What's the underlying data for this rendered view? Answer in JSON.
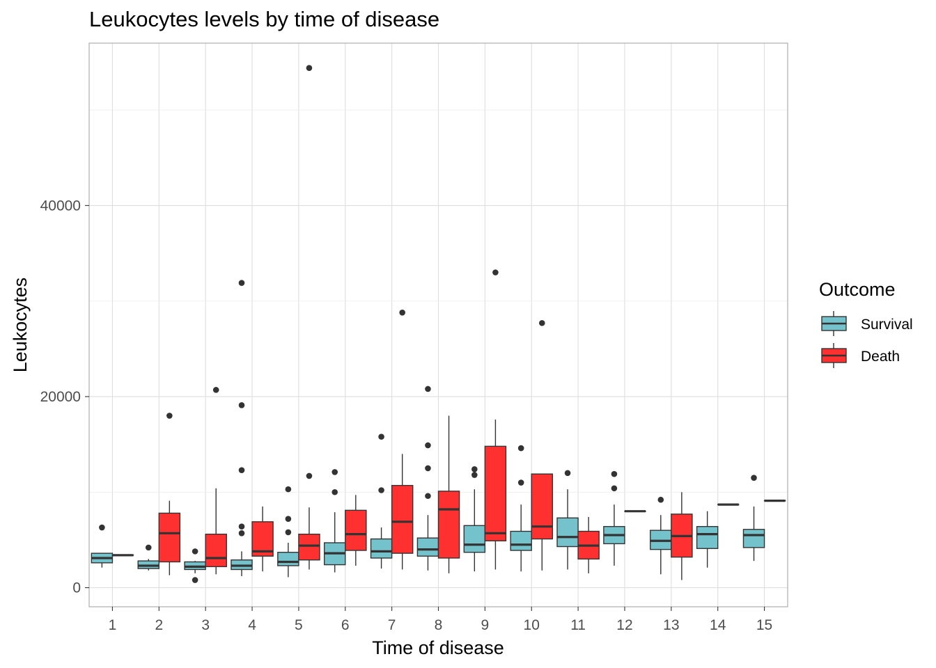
{
  "chart_data": {
    "type": "boxplot",
    "title": "Leukocytes levels by time of disease",
    "xlabel": "Time of disease",
    "ylabel": "Leukocytes",
    "categories": [
      "1",
      "2",
      "3",
      "4",
      "5",
      "6",
      "7",
      "8",
      "9",
      "10",
      "11",
      "12",
      "13",
      "14",
      "15"
    ],
    "y_ticks": [
      0,
      20000,
      40000
    ],
    "y_tick_labels": [
      "0",
      "20000",
      "40000"
    ],
    "ylim": [
      -2000,
      57000
    ],
    "grid": true,
    "legend": {
      "title": "Outcome",
      "position": "right"
    },
    "series": [
      {
        "name": "Survival",
        "color": "#74C2CB",
        "boxes": [
          {
            "x": "1",
            "min": 2100,
            "q1": 2600,
            "median": 3100,
            "q3": 3600,
            "max": 3600,
            "outliers": [
              6300
            ]
          },
          {
            "x": "2",
            "min": 1800,
            "q1": 2000,
            "median": 2300,
            "q3": 2800,
            "max": 3000,
            "outliers": [
              4200
            ]
          },
          {
            "x": "3",
            "min": 1500,
            "q1": 1900,
            "median": 2200,
            "q3": 2700,
            "max": 2800,
            "outliers": [
              3800,
              800
            ]
          },
          {
            "x": "4",
            "min": 1200,
            "q1": 1900,
            "median": 2300,
            "q3": 2900,
            "max": 3800,
            "outliers": [
              6400,
              5700,
              31900,
              19100,
              12300
            ]
          },
          {
            "x": "5",
            "min": 1100,
            "q1": 2300,
            "median": 2700,
            "q3": 3700,
            "max": 4700,
            "outliers": [
              10300,
              7200,
              5800
            ]
          },
          {
            "x": "6",
            "min": 1600,
            "q1": 2400,
            "median": 3600,
            "q3": 4700,
            "max": 7900,
            "outliers": [
              12100,
              10000
            ]
          },
          {
            "x": "7",
            "min": 2000,
            "q1": 3100,
            "median": 3800,
            "q3": 5100,
            "max": 6300,
            "outliers": [
              15800,
              10200
            ]
          },
          {
            "x": "8",
            "min": 1800,
            "q1": 3300,
            "median": 4000,
            "q3": 5200,
            "max": 7600,
            "outliers": [
              20800,
              14900,
              12500,
              9600
            ]
          },
          {
            "x": "9",
            "min": 1700,
            "q1": 3700,
            "median": 4500,
            "q3": 6500,
            "max": 10300,
            "outliers": [
              12400,
              11800
            ]
          },
          {
            "x": "10",
            "min": 1700,
            "q1": 3900,
            "median": 4500,
            "q3": 5900,
            "max": 8700,
            "outliers": [
              14600,
              11000
            ]
          },
          {
            "x": "11",
            "min": 1900,
            "q1": 4300,
            "median": 5300,
            "q3": 7300,
            "max": 10300,
            "outliers": [
              12000
            ]
          },
          {
            "x": "12",
            "min": 2300,
            "q1": 4600,
            "median": 5500,
            "q3": 6400,
            "max": 8700,
            "outliers": [
              11900,
              10400
            ]
          },
          {
            "x": "13",
            "min": 1400,
            "q1": 4000,
            "median": 4900,
            "q3": 6000,
            "max": 7600,
            "outliers": [
              9200
            ]
          },
          {
            "x": "14",
            "min": 2100,
            "q1": 4100,
            "median": 5600,
            "q3": 6400,
            "max": 8000,
            "outliers": []
          },
          {
            "x": "15",
            "min": 2800,
            "q1": 4200,
            "median": 5500,
            "q3": 6100,
            "max": 8500,
            "outliers": [
              11500
            ]
          }
        ]
      },
      {
        "name": "Death",
        "color": "#FF3030",
        "boxes": [
          {
            "x": "1",
            "min": 3400,
            "q1": 3400,
            "median": 3400,
            "q3": 3400,
            "max": 3400,
            "outliers": []
          },
          {
            "x": "2",
            "min": 1300,
            "q1": 2700,
            "median": 5700,
            "q3": 7800,
            "max": 9100,
            "outliers": [
              18000
            ]
          },
          {
            "x": "3",
            "min": 1400,
            "q1": 2200,
            "median": 3100,
            "q3": 5600,
            "max": 10400,
            "outliers": [
              20700
            ]
          },
          {
            "x": "4",
            "min": 1700,
            "q1": 3300,
            "median": 3800,
            "q3": 6900,
            "max": 8500,
            "outliers": []
          },
          {
            "x": "5",
            "min": 1900,
            "q1": 2900,
            "median": 4400,
            "q3": 5600,
            "max": 8400,
            "outliers": [
              54400,
              11700
            ]
          },
          {
            "x": "6",
            "min": 2300,
            "q1": 3900,
            "median": 5600,
            "q3": 8100,
            "max": 9700,
            "outliers": []
          },
          {
            "x": "7",
            "min": 1900,
            "q1": 3600,
            "median": 6900,
            "q3": 10700,
            "max": 14000,
            "outliers": [
              28800
            ]
          },
          {
            "x": "8",
            "min": 1500,
            "q1": 3100,
            "median": 8200,
            "q3": 10100,
            "max": 18000,
            "outliers": []
          },
          {
            "x": "9",
            "min": 1900,
            "q1": 4900,
            "median": 5700,
            "q3": 14800,
            "max": 17600,
            "outliers": [
              33000
            ]
          },
          {
            "x": "10",
            "min": 1800,
            "q1": 5100,
            "median": 6400,
            "q3": 11900,
            "max": 11900,
            "outliers": [
              27700
            ]
          },
          {
            "x": "11",
            "min": 1500,
            "q1": 3000,
            "median": 4400,
            "q3": 5900,
            "max": 7400,
            "outliers": []
          },
          {
            "x": "12",
            "min": 8000,
            "q1": 8000,
            "median": 8000,
            "q3": 8000,
            "max": 8000,
            "outliers": []
          },
          {
            "x": "13",
            "min": 800,
            "q1": 3200,
            "median": 5400,
            "q3": 7700,
            "max": 10000,
            "outliers": []
          },
          {
            "x": "14",
            "min": 8700,
            "q1": 8700,
            "median": 8700,
            "q3": 8700,
            "max": 8700,
            "outliers": []
          },
          {
            "x": "15",
            "min": 9100,
            "q1": 9100,
            "median": 9100,
            "q3": 9100,
            "max": 9100,
            "outliers": []
          }
        ]
      }
    ]
  }
}
